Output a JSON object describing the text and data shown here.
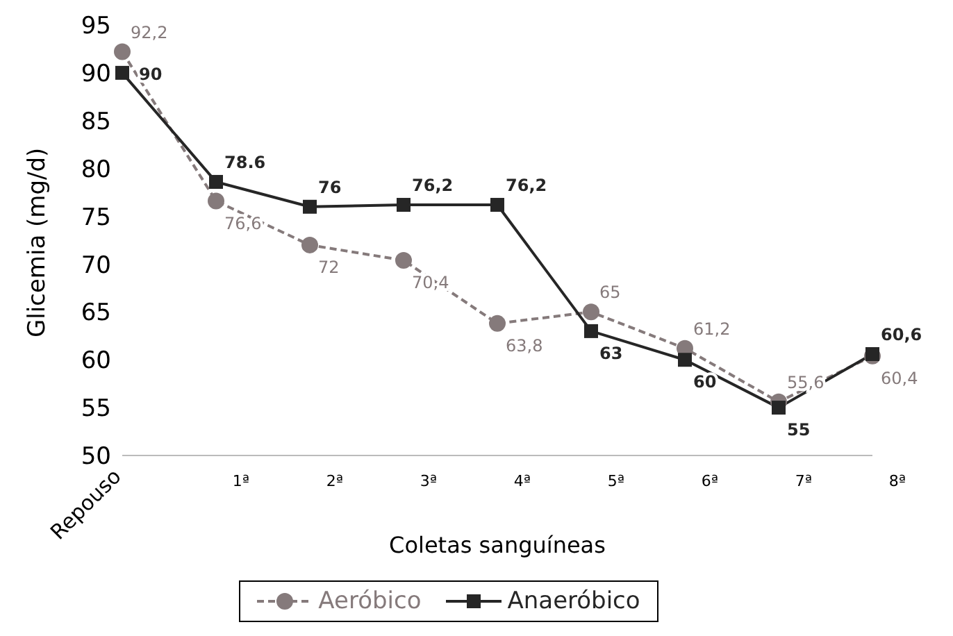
{
  "chart_data": {
    "type": "line",
    "xlabel": "Coletas sanguíneas",
    "ylabel": "Glicemia (mg/d)",
    "categories": [
      "Repouso",
      "1ª",
      "2ª",
      "3ª",
      "4ª",
      "5ª",
      "6ª",
      "7ª",
      "8ª"
    ],
    "series": [
      {
        "name": "Aeróbico",
        "color": "#857a7b",
        "marker": "circle",
        "line_style": "dashed",
        "values": [
          92.2,
          76.6,
          72,
          70.4,
          63.8,
          65,
          61.2,
          55.6,
          60.4
        ],
        "value_labels": [
          "92,2",
          "76,6",
          "72",
          "70,4",
          "63,8",
          "65",
          "61,2",
          "55,6",
          "60,4"
        ]
      },
      {
        "name": "Anaeróbico",
        "color": "#262626",
        "marker": "square",
        "line_style": "solid",
        "values": [
          90,
          78.6,
          76,
          76.2,
          76.2,
          63,
          60,
          55,
          60.6
        ],
        "value_labels": [
          "90",
          "78.6",
          "76",
          "76,2",
          "76,2",
          "63",
          "60",
          "55",
          "60,6"
        ]
      }
    ],
    "ylim": [
      50,
      95
    ],
    "yticks": [
      50,
      55,
      60,
      65,
      70,
      75,
      80,
      85,
      90,
      95
    ],
    "grid": false,
    "legend": "bottom"
  }
}
